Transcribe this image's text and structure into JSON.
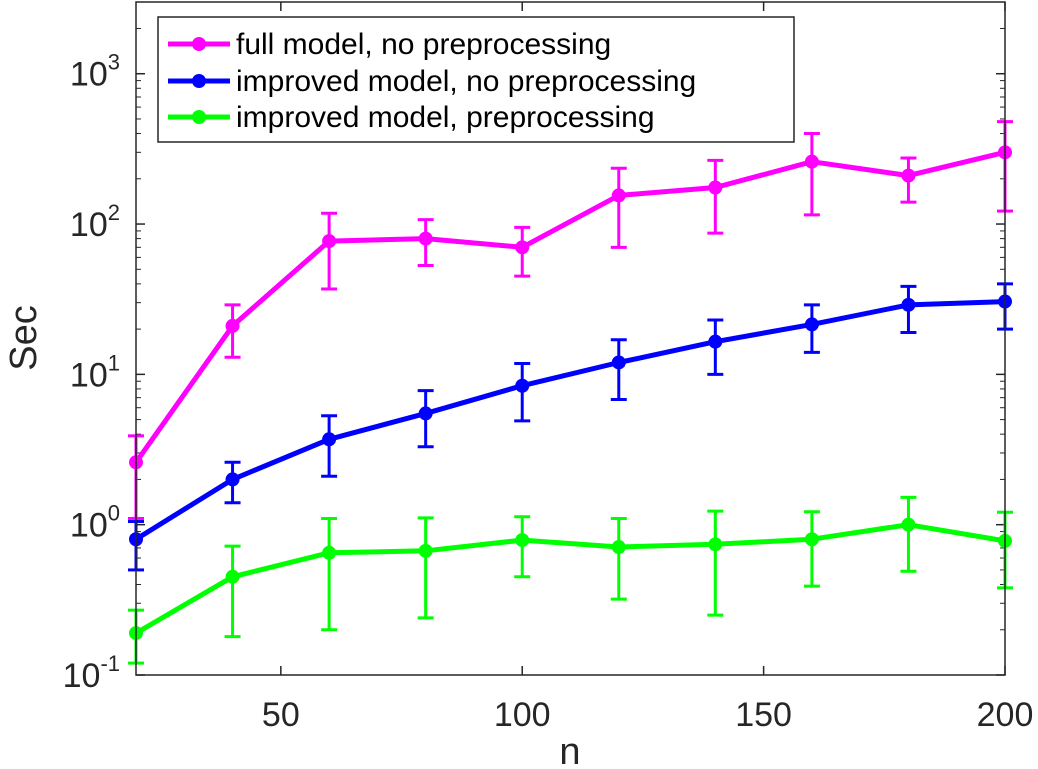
{
  "chart_data": {
    "type": "line",
    "title": "",
    "xlabel": "n",
    "ylabel": "Sec",
    "yscale": "log",
    "xlim": [
      20,
      200
    ],
    "ylim": [
      0.1,
      3000
    ],
    "x_ticks": [
      50,
      100,
      150,
      200
    ],
    "y_ticks": [
      0.1,
      1,
      10,
      100,
      1000
    ],
    "y_tick_labels": [
      {
        "base": "10",
        "exp": "-1"
      },
      {
        "base": "10",
        "exp": "0"
      },
      {
        "base": "10",
        "exp": "1"
      },
      {
        "base": "10",
        "exp": "2"
      },
      {
        "base": "10",
        "exp": "3"
      }
    ],
    "grid": false,
    "legend_position": "top-left",
    "x": [
      20,
      40,
      60,
      80,
      100,
      120,
      140,
      160,
      180,
      200
    ],
    "series": [
      {
        "name": "full model, no preprocessing",
        "color": "#ff00ff",
        "values": [
          2.6,
          21,
          77,
          80,
          70,
          155,
          175,
          260,
          210,
          300
        ],
        "err_low": [
          1.1,
          13,
          37,
          53,
          45,
          70,
          87,
          115,
          140,
          122
        ],
        "err_high": [
          3.9,
          29,
          118,
          107,
          95,
          235,
          265,
          400,
          275,
          480
        ]
      },
      {
        "name": "improved model, no preprocessing",
        "color": "#0000ff",
        "values": [
          0.8,
          2.0,
          3.7,
          5.5,
          8.4,
          12,
          16.5,
          21.5,
          29,
          30.5
        ],
        "err_low": [
          0.5,
          1.4,
          2.1,
          3.3,
          4.9,
          6.8,
          10,
          14,
          19,
          20
        ],
        "err_high": [
          1.05,
          2.6,
          5.3,
          7.8,
          11.8,
          17,
          23,
          29,
          38.5,
          40
        ]
      },
      {
        "name": "improved model, preprocessing",
        "color": "#00ff00",
        "values": [
          0.19,
          0.45,
          0.65,
          0.67,
          0.79,
          0.71,
          0.74,
          0.8,
          1.0,
          0.78
        ],
        "err_low": [
          0.12,
          0.18,
          0.2,
          0.24,
          0.45,
          0.32,
          0.25,
          0.39,
          0.49,
          0.38
        ],
        "err_high": [
          0.27,
          0.72,
          1.1,
          1.11,
          1.13,
          1.1,
          1.23,
          1.22,
          1.52,
          1.21
        ]
      }
    ]
  }
}
